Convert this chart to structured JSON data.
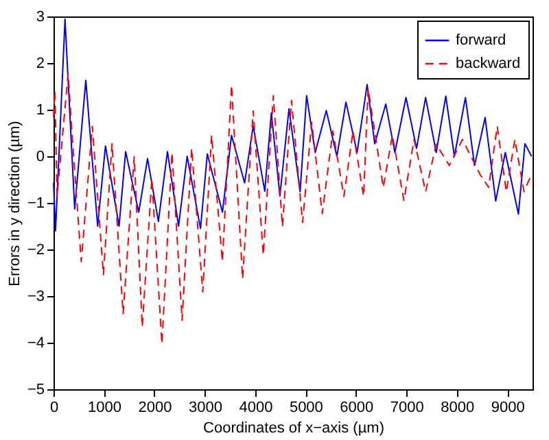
{
  "chart_data": {
    "type": "line",
    "xlabel": "Coordinates of x−axis (µm)",
    "ylabel": "Errors in y direction (µm)",
    "xlim": [
      0,
      9500
    ],
    "ylim": [
      -5,
      3
    ],
    "xticks": [
      0,
      1000,
      2000,
      3000,
      4000,
      5000,
      6000,
      7000,
      8000,
      9000
    ],
    "yticks": [
      -5,
      -4,
      -3,
      -2,
      -1,
      0,
      1,
      2,
      3
    ],
    "legend": "top right",
    "grid": false,
    "series": [
      {
        "name": "forward",
        "color": "#0000ff",
        "line_style": "solid",
        "x": [
          0,
          40,
          228,
          420,
          640,
          875,
          1030,
          1300,
          1430,
          1690,
          1865,
          2080,
          2260,
          2480,
          2650,
          2915,
          3050,
          3350,
          3530,
          3790,
          3960,
          4190,
          4320,
          4490,
          4670,
          4890,
          5020,
          5190,
          5410,
          5620,
          5800,
          6020,
          6220,
          6370,
          6590,
          6770,
          6990,
          7200,
          7380,
          7590,
          7780,
          7950,
          8170,
          8350,
          8560,
          8770,
          8960,
          9220,
          9350,
          9480
        ],
        "values": [
          -0.57,
          -1.6,
          2.94,
          -1.13,
          1.63,
          -1.5,
          0.22,
          -1.5,
          0.1,
          -1.2,
          -0.05,
          -1.4,
          0.1,
          -1.5,
          0,
          -1.55,
          0.05,
          -1.2,
          0.45,
          -0.57,
          0.65,
          -0.75,
          0.93,
          -0.85,
          1.02,
          -0.76,
          1.3,
          0.08,
          0.98,
          0,
          1.16,
          0.08,
          1.54,
          0.27,
          1.12,
          0.08,
          1.26,
          0.17,
          1.26,
          0.08,
          1.29,
          0,
          1.26,
          -0.2,
          0.83,
          -0.96,
          0.08,
          -1.24,
          0.27,
          0
        ]
      },
      {
        "name": "backward",
        "color": "#ff0000",
        "line_style": "dashed",
        "x": [
          0,
          26,
          70,
          290,
          375,
          550,
          770,
          990,
          1160,
          1380,
          1600,
          1760,
          1950,
          2150,
          2350,
          2550,
          2740,
          2960,
          3135,
          3350,
          3530,
          3750,
          3960,
          4160,
          4360,
          4540,
          4720,
          4940,
          5120,
          5330,
          5540,
          5760,
          5940,
          6150,
          6240,
          6540,
          6720,
          6950,
          7150,
          7380,
          7590,
          7850,
          8110,
          8460,
          8630,
          8800,
          8980,
          9150,
          9330,
          9480
        ],
        "values": [
          0.83,
          1.4,
          -0.85,
          1.77,
          0.36,
          -2.26,
          0.64,
          -2.54,
          0.27,
          -3.38,
          -0.01,
          -3.66,
          -0.48,
          -4.03,
          0.08,
          -3.52,
          0.17,
          -2.91,
          0.45,
          -2.26,
          1.53,
          -2.63,
          0.97,
          -2.12,
          1.3,
          -1.51,
          1.2,
          -1.42,
          0.73,
          -1.23,
          0.54,
          -0.86,
          0.54,
          -0.86,
          1.45,
          -0.67,
          0.45,
          -0.95,
          0.36,
          -0.76,
          0.26,
          -0.2,
          0.36,
          -0.39,
          -0.67,
          0.64,
          -0.76,
          0.36,
          -0.76,
          -0.39
        ]
      }
    ]
  }
}
